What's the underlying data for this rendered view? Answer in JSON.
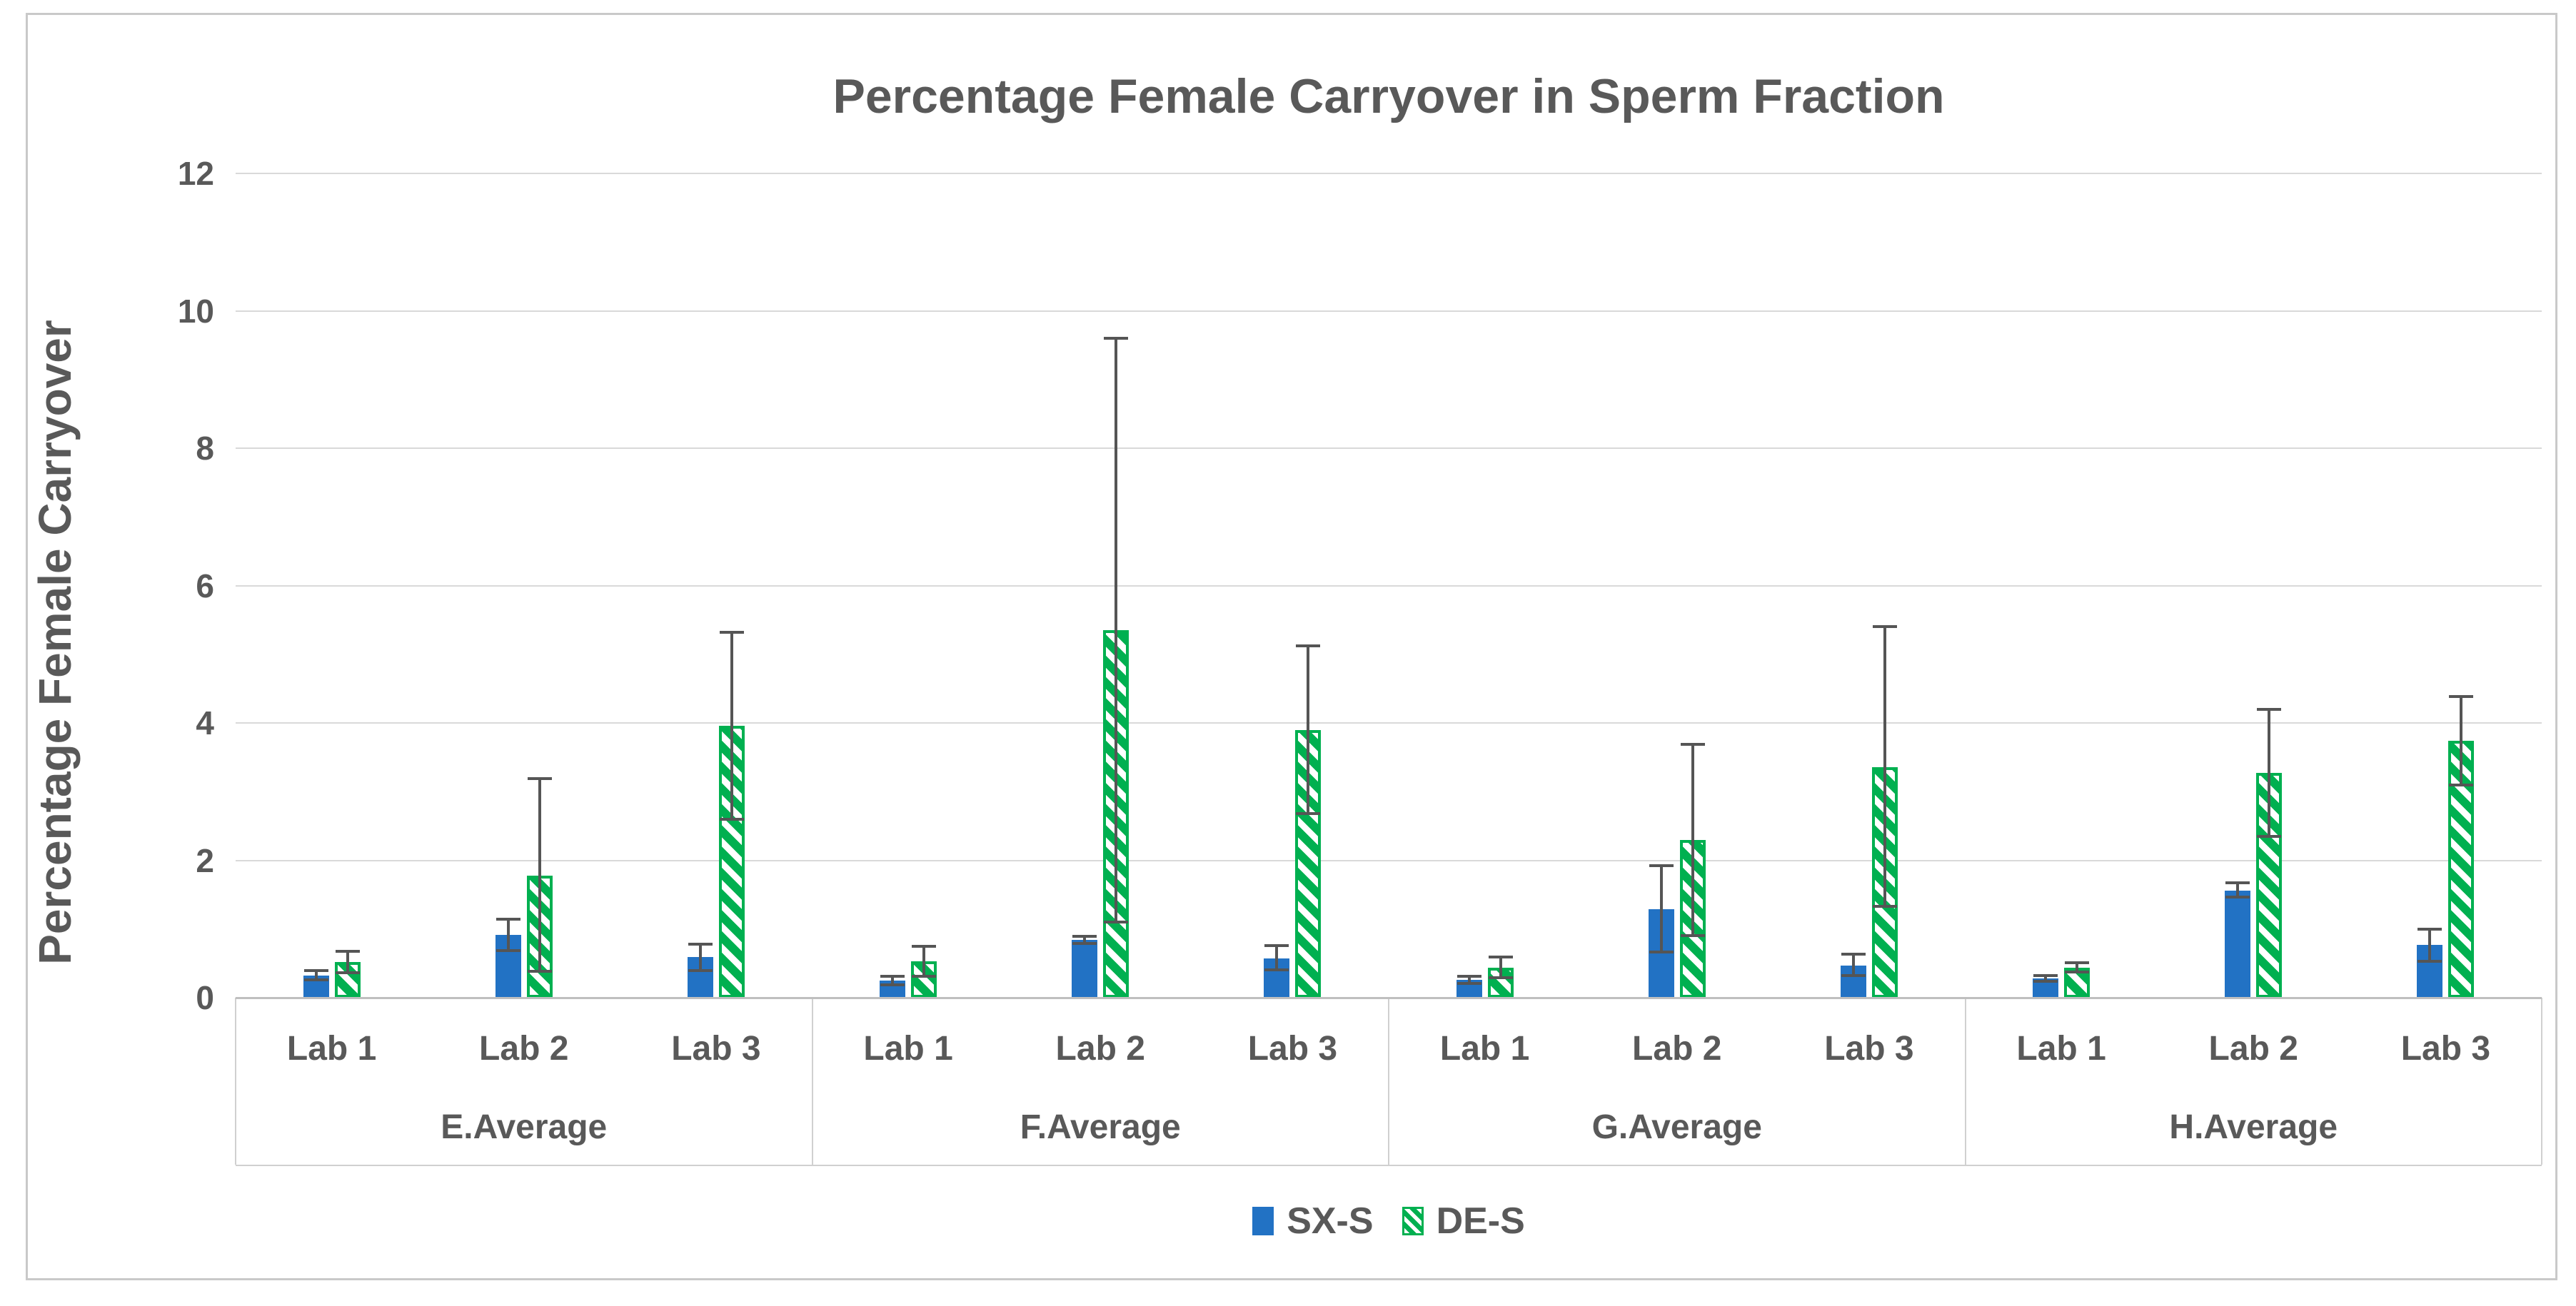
{
  "ui": {
    "text_color": "#595959",
    "gridline_color": "#d9d9d9",
    "axis_line_color": "#bfbfbf",
    "error_bar_color": "#555555",
    "page_border_color": "#c9c9c9",
    "background_color": "#ffffff"
  },
  "chart_data": {
    "type": "bar",
    "title": "Percentage Female Carryover in Sperm Fraction",
    "xlabel": "",
    "ylabel": "Percentage Female Carryover",
    "ylim": [
      0,
      12
    ],
    "yticks": [
      0,
      2,
      4,
      6,
      8,
      10,
      12
    ],
    "grid": "horizontal",
    "legend_position": "bottom",
    "groups": [
      "E.Average",
      "F.Average",
      "G.Average",
      "H.Average"
    ],
    "categories": [
      "Lab 1",
      "Lab 2",
      "Lab 3"
    ],
    "series": [
      {
        "name": "SX-S",
        "style": "solid",
        "color": "#2272c4",
        "values": [
          [
            0.32,
            0.91,
            0.59
          ],
          [
            0.25,
            0.84,
            0.57
          ],
          [
            0.26,
            1.29,
            0.47
          ],
          [
            0.28,
            1.56,
            0.77
          ]
        ],
        "error_low": [
          [
            0.26,
            0.69,
            0.4
          ],
          [
            0.19,
            0.79,
            0.41
          ],
          [
            0.21,
            0.66,
            0.32
          ],
          [
            0.24,
            1.47,
            0.53
          ]
        ],
        "error_high": [
          [
            0.4,
            1.14,
            0.78
          ],
          [
            0.31,
            0.89,
            0.76
          ],
          [
            0.31,
            1.92,
            0.63
          ],
          [
            0.32,
            1.67,
            1.0
          ]
        ]
      },
      {
        "name": "DE-S",
        "style": "hatched",
        "color": "#00b050",
        "values": [
          [
            0.52,
            1.78,
            3.96
          ],
          [
            0.53,
            5.35,
            3.9
          ],
          [
            0.44,
            2.3,
            3.36
          ],
          [
            0.44,
            3.27,
            3.74
          ]
        ],
        "error_low": [
          [
            0.36,
            0.38,
            2.6
          ],
          [
            0.31,
            1.1,
            2.68
          ],
          [
            0.29,
            0.9,
            1.33
          ],
          [
            0.37,
            2.35,
            3.1
          ]
        ],
        "error_high": [
          [
            0.68,
            3.19,
            5.32
          ],
          [
            0.75,
            9.6,
            5.12
          ],
          [
            0.59,
            3.69,
            5.4
          ],
          [
            0.51,
            4.2,
            4.38
          ]
        ]
      }
    ]
  }
}
